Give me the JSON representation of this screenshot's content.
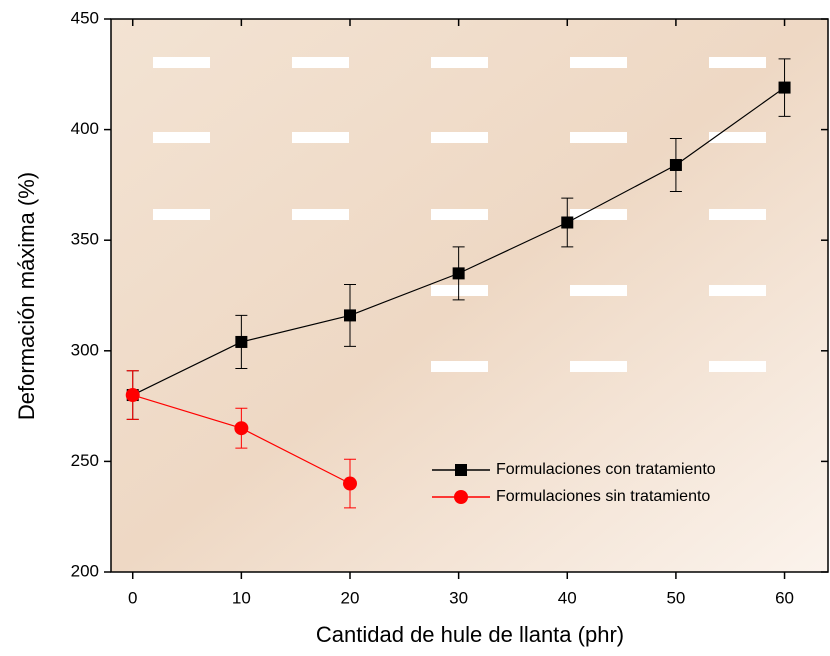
{
  "chart_data": {
    "type": "line",
    "x_label": "Cantidad de hule de llanta (phr)",
    "y_label": "Deformación máxima (%)",
    "xlim": [
      -2,
      64
    ],
    "xticks": [
      0,
      10,
      20,
      30,
      40,
      50,
      60
    ],
    "ylim": [
      200,
      450
    ],
    "yticks": [
      200,
      250,
      300,
      350,
      400,
      450
    ],
    "legend": "lower-right",
    "series": [
      {
        "name": "Formulaciones con tratamiento",
        "color": "#000000",
        "marker": "square",
        "x": [
          0,
          10,
          20,
          30,
          40,
          50,
          60
        ],
        "values": [
          280,
          304,
          316,
          335,
          358,
          384,
          419
        ],
        "errors": [
          11,
          12,
          14,
          12,
          11,
          12,
          13
        ]
      },
      {
        "name": "Formulaciones sin tratamiento",
        "color": "#ff0000",
        "marker": "circle",
        "x": [
          0,
          10,
          20
        ],
        "values": [
          280,
          265,
          240
        ],
        "errors": [
          11,
          9,
          11
        ]
      }
    ]
  }
}
